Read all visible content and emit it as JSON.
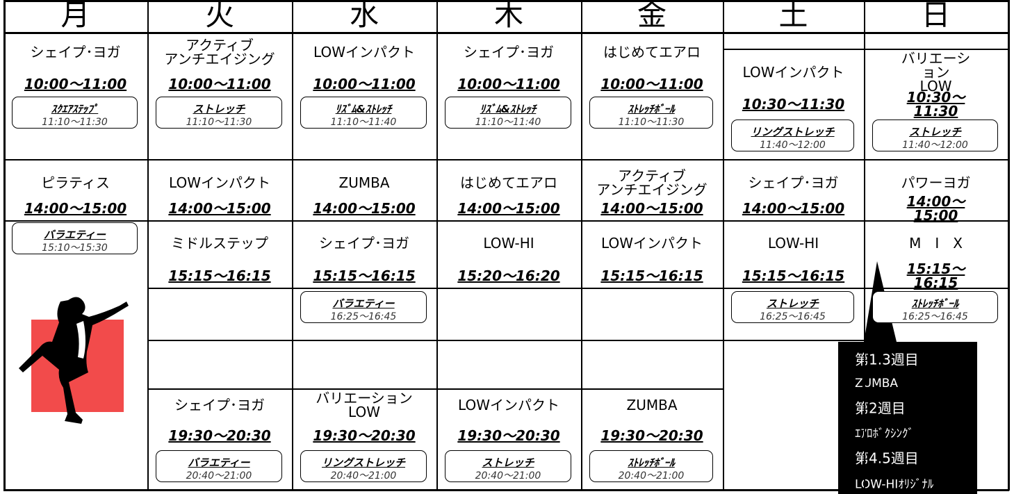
{
  "days": [
    {
      "day": "月",
      "morning": {
        "class": "シェイプ･ヨガ",
        "time": "10:00～11:00",
        "sub": {
          "name": "ｽｸｴｱｽﾃｯﾌﾟ",
          "time": "11:10～11:30"
        }
      },
      "afternoon": {
        "class": "ピラティス",
        "time": "14:00～15:00",
        "sub": {
          "name": "バラエティー",
          "time": "15:10～15:30"
        }
      }
    },
    {
      "day": "火",
      "morning": {
        "class": "アクティブ\nアンチエイジング",
        "time": "10:00～11:00",
        "sub": {
          "name": "ストレッチ",
          "time": "11:10～11:30"
        }
      },
      "afternoon": {
        "class": "LOWインパクト",
        "time": "14:00～15:00"
      },
      "late": {
        "class": "ミドルステップ",
        "time": "15:15～16:15"
      },
      "evening": {
        "class": "シェイプ･ヨガ",
        "time": "19:30～20:30",
        "sub": {
          "name": "バラエティー",
          "time": "20:40～21:00"
        }
      }
    },
    {
      "day": "水",
      "morning": {
        "class": "LOWインパクト",
        "time": "10:00～11:00",
        "sub": {
          "name": "ﾘｽﾞﾑ&ｽﾄﾚｯﾁ",
          "time": "11:10～11:40"
        }
      },
      "afternoon": {
        "class": "ZUMBA",
        "time": "14:00～15:00"
      },
      "late": {
        "class": "シェイプ･ヨガ",
        "time": "15:15～16:15",
        "sub": {
          "name": "バラエティー",
          "time": "16:25～16:45"
        }
      },
      "evening": {
        "class": "バリエーション\nLOW",
        "time": "19:30～20:30",
        "sub": {
          "name": "リングストレッチ",
          "time": "20:40～21:00"
        }
      }
    },
    {
      "day": "木",
      "morning": {
        "class": "シェイプ･ヨガ",
        "time": "10:00～11:00",
        "sub": {
          "name": "ﾘｽﾞﾑ&ｽﾄﾚｯﾁ",
          "time": "11:10～11:40"
        }
      },
      "afternoon": {
        "class": "はじめてエアロ",
        "time": "14:00～15:00"
      },
      "late": {
        "class": "LOW-HI",
        "time": "15:20～16:20"
      },
      "evening": {
        "class": "LOWインパクト",
        "time": "19:30～20:30",
        "sub": {
          "name": "ストレッチ",
          "time": "20:40～21:00"
        }
      }
    },
    {
      "day": "金",
      "morning": {
        "class": "はじめてエアロ",
        "time": "10:00～11:00",
        "sub": {
          "name": "ｽﾄﾚｯﾁﾎﾞｰﾙ",
          "time": "11:10～11:30"
        }
      },
      "afternoon": {
        "class": "アクティブ\nアンチエイジング",
        "time": "14:00～15:00"
      },
      "late": {
        "class": "LOWインパクト",
        "time": "15:15～16:15"
      },
      "evening": {
        "class": "ZUMBA",
        "time": "19:30～20:30",
        "sub": {
          "name": "ｽﾄﾚｯﾁﾎﾞｰﾙ",
          "time": "20:40～21:00"
        }
      }
    },
    {
      "day": "土",
      "morning": {
        "class": "LOWインパクト",
        "time": "10:30～11:30",
        "sub": {
          "name": "リングストレッチ",
          "time": "11:40～12:00"
        }
      },
      "afternoon": {
        "class": "シェイプ･ヨガ",
        "time": "14:00～15:00"
      },
      "late": {
        "class": "LOW-HI",
        "time": "15:15～16:15",
        "sub": {
          "name": "ストレッチ",
          "time": "16:25～16:45"
        }
      }
    },
    {
      "day": "日",
      "morning": {
        "class": "バリエーション\nLOW",
        "time": "10:30～11:30",
        "sub": {
          "name": "ストレッチ",
          "time": "11:40～12:00"
        }
      },
      "afternoon": {
        "class": "パワーヨガ",
        "time": "14:00～15:00"
      },
      "late": {
        "class": "M　I　X",
        "time": "15:15～16:15",
        "sub": {
          "name": "ｽﾄﾚｯﾁﾎﾞｰﾙ",
          "time": "16:25～16:45"
        }
      }
    }
  ],
  "note": [
    "第1.3週目",
    "ZUMBA",
    "第2週目",
    "ｴｱﾛﾎﾞｸｼﾝｸﾞ",
    "第4.5週目",
    "LOW-HIｵﾘｼﾞﾅﾙ"
  ]
}
